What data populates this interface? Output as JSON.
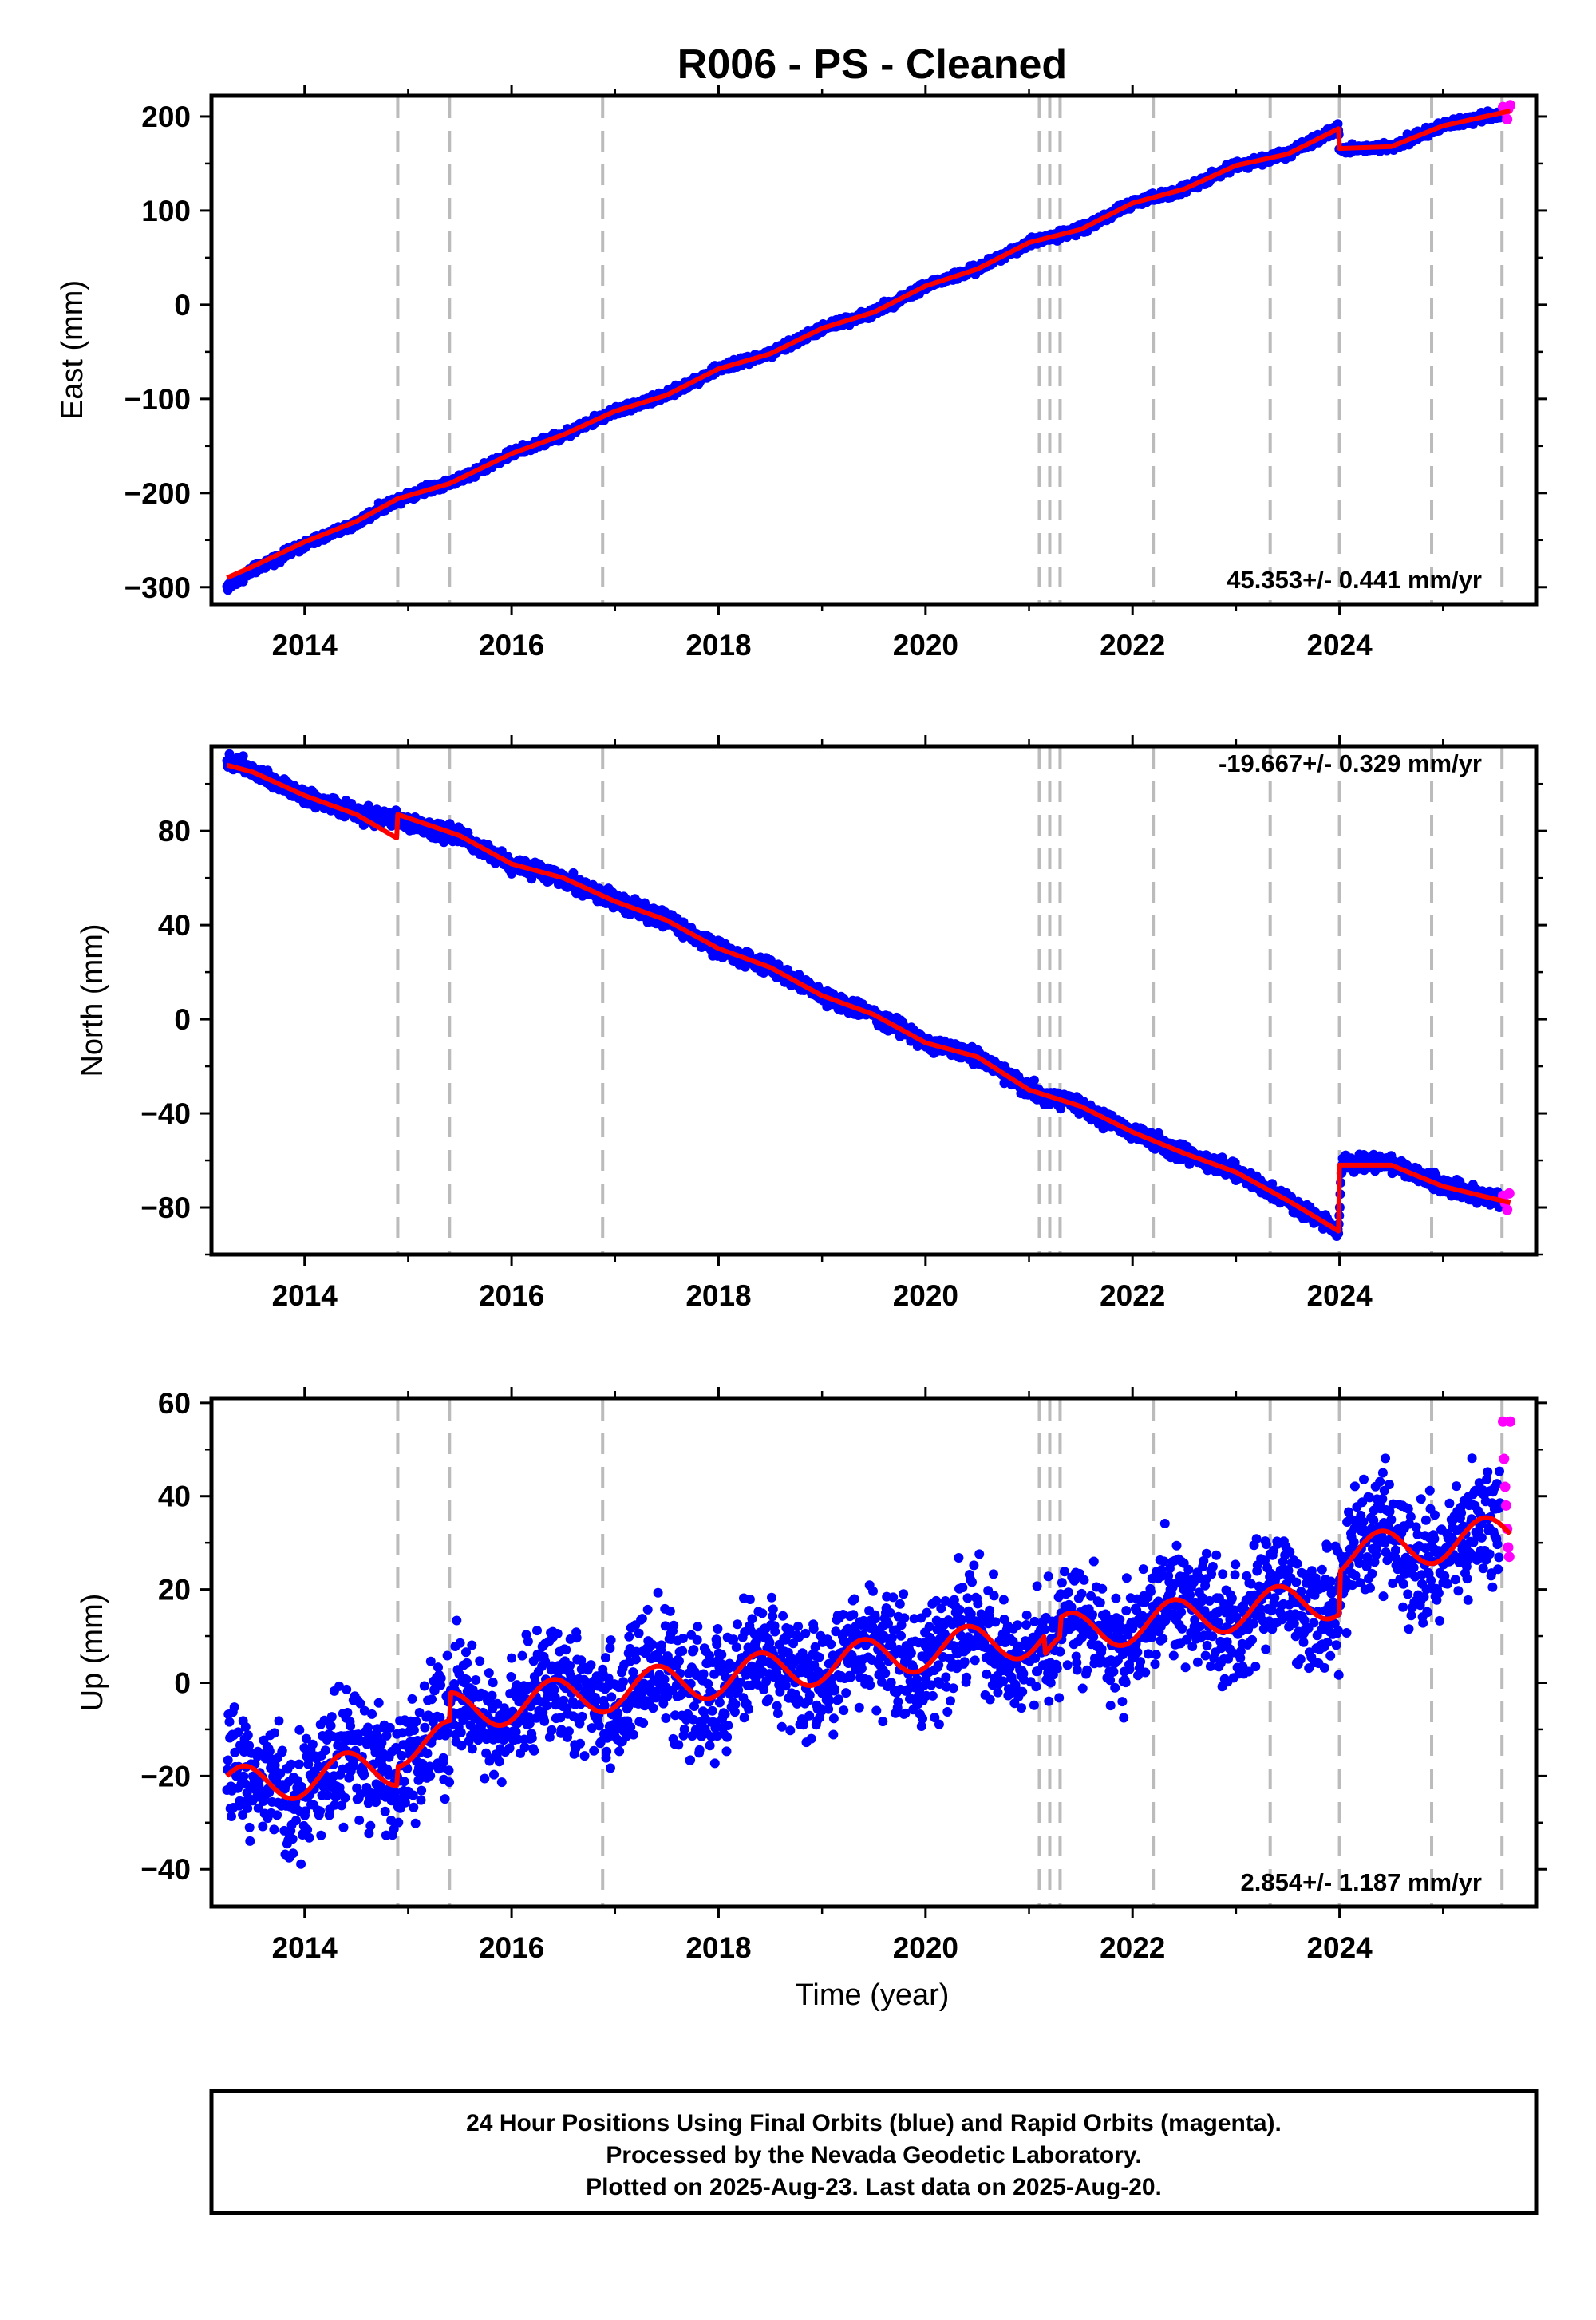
{
  "title": "R006  - PS - Cleaned",
  "xlabel": "Time (year)",
  "footer_lines": [
    "24 Hour Positions Using Final Orbits (blue) and Rapid Orbits (magenta).",
    "Processed by the Nevada Geodetic Laboratory.",
    "Plotted on 2025-Aug-23. Last data on 2025-Aug-20."
  ],
  "colors": {
    "final_orbits": "#0000ff",
    "rapid_orbits": "#ff00ff",
    "model_fit": "#ff0000",
    "steps": "#bbbbbb"
  },
  "chart_data": [
    {
      "type": "scatter",
      "panel": "east",
      "ylabel": "East (mm)",
      "rate_label": "45.353+/- 0.441 mm/yr",
      "rate_position": "bottom-right",
      "xlim": [
        2013.1,
        2025.9
      ],
      "ylim": [
        -318,
        222
      ],
      "xticks": [
        2014,
        2016,
        2018,
        2020,
        2022,
        2024
      ],
      "yticks": [
        -300,
        -200,
        -100,
        0,
        100,
        200
      ],
      "ytick_labels": [
        "−300",
        "−200",
        "−100",
        "0",
        "100",
        "200"
      ],
      "step_epochs": [
        2014.9,
        2015.4,
        2016.88,
        2021.1,
        2021.2,
        2021.3,
        2022.2,
        2023.33,
        2024.0,
        2024.89,
        2025.57
      ],
      "series": [
        {
          "name": "Final Orbits",
          "x": [
            2013.25,
            2013.5,
            2014.0,
            2014.5,
            2014.75,
            2015.0,
            2015.5,
            2016.0,
            2016.5,
            2017.0,
            2017.5,
            2018.0,
            2018.5,
            2019.0,
            2019.5,
            2020.0,
            2020.5,
            2021.0,
            2021.5,
            2022.0,
            2022.5,
            2023.0,
            2023.5,
            2023.99,
            2024.0,
            2024.5,
            2025.0,
            2025.55
          ],
          "y": [
            -300,
            -282,
            -255,
            -232,
            -215,
            -202,
            -185,
            -158,
            -138,
            -113,
            -96,
            -68,
            -52,
            -25,
            -8,
            20,
            38,
            66,
            80,
            108,
            123,
            148,
            160,
            187,
            165,
            168,
            190,
            203
          ]
        },
        {
          "name": "Rapid Orbits",
          "x": [
            2025.58,
            2025.6,
            2025.62,
            2025.63,
            2025.65
          ],
          "y": [
            210,
            205,
            197,
            208,
            212
          ]
        },
        {
          "name": "Model",
          "x": [
            2013.25,
            2013.5,
            2014.0,
            2014.5,
            2014.9,
            2015.4,
            2016.0,
            2016.5,
            2017.0,
            2017.5,
            2018.0,
            2018.5,
            2019.0,
            2019.5,
            2020.0,
            2020.5,
            2021.0,
            2021.5,
            2022.0,
            2022.5,
            2023.0,
            2023.5,
            2023.99,
            2024.0,
            2024.5,
            2025.0,
            2025.65
          ],
          "y": [
            -290,
            -278,
            -252,
            -230,
            -206,
            -190,
            -158,
            -138,
            -113,
            -96,
            -68,
            -52,
            -25,
            -8,
            20,
            38,
            66,
            80,
            108,
            123,
            148,
            160,
            187,
            166,
            168,
            190,
            206
          ]
        }
      ]
    },
    {
      "type": "scatter",
      "panel": "north",
      "ylabel": "North (mm)",
      "rate_label": "-19.667+/- 0.329 mm/yr",
      "rate_position": "top-right",
      "xlim": [
        2013.1,
        2025.9
      ],
      "ylim": [
        -100,
        116
      ],
      "xticks": [
        2014,
        2016,
        2018,
        2020,
        2022,
        2024
      ],
      "yticks": [
        -80,
        -40,
        0,
        40,
        80
      ],
      "ytick_labels": [
        "−80",
        "−40",
        "0",
        "40",
        "80"
      ],
      "step_epochs": [
        2014.9,
        2015.4,
        2016.88,
        2021.1,
        2021.2,
        2021.3,
        2022.2,
        2023.33,
        2024.0,
        2024.89,
        2025.57
      ],
      "series": [
        {
          "name": "Final Orbits",
          "x": [
            2013.25,
            2013.5,
            2014.0,
            2014.5,
            2014.89,
            2014.92,
            2015.5,
            2016.0,
            2016.5,
            2017.0,
            2017.5,
            2018.0,
            2018.5,
            2019.0,
            2019.5,
            2020.0,
            2020.5,
            2021.0,
            2021.5,
            2022.0,
            2022.5,
            2023.0,
            2023.5,
            2023.99,
            2024.02,
            2024.5,
            2025.0,
            2025.55
          ],
          "y": [
            110,
            106,
            95,
            87,
            85,
            84,
            78,
            66,
            60,
            50,
            42,
            30,
            22,
            10,
            2,
            -10,
            -16,
            -30,
            -37,
            -48,
            -57,
            -65,
            -77,
            -90,
            -61,
            -61,
            -71,
            -77
          ]
        },
        {
          "name": "Rapid Orbits",
          "x": [
            2025.58,
            2025.6,
            2025.62,
            2025.64
          ],
          "y": [
            -75,
            -78,
            -81,
            -74
          ]
        },
        {
          "name": "Model",
          "x": [
            2013.25,
            2013.5,
            2014.0,
            2014.5,
            2014.89,
            2014.9,
            2015.5,
            2016.0,
            2016.5,
            2017.0,
            2017.5,
            2018.0,
            2018.5,
            2019.0,
            2019.5,
            2020.0,
            2020.5,
            2021.0,
            2021.5,
            2022.0,
            2022.5,
            2023.0,
            2023.5,
            2023.99,
            2024.0,
            2024.5,
            2025.0,
            2025.65
          ],
          "y": [
            108,
            105,
            95,
            87,
            77,
            87,
            78,
            66,
            60,
            50,
            42,
            30,
            22,
            10,
            2,
            -10,
            -16,
            -30,
            -37,
            -48,
            -57,
            -65,
            -77,
            -90,
            -62,
            -62,
            -71,
            -78
          ]
        }
      ]
    },
    {
      "type": "scatter",
      "panel": "up",
      "ylabel": "Up (mm)",
      "rate_label": "2.854+/- 1.187 mm/yr",
      "rate_position": "bottom-right",
      "xlim": [
        2013.1,
        2025.9
      ],
      "ylim": [
        -48,
        61
      ],
      "xticks": [
        2014,
        2016,
        2018,
        2020,
        2022,
        2024
      ],
      "yticks": [
        -40,
        -20,
        0,
        20,
        40,
        60
      ],
      "ytick_labels": [
        "−40",
        "−20",
        "0",
        "20",
        "40",
        "60"
      ],
      "step_epochs": [
        2014.9,
        2015.4,
        2016.88,
        2021.1,
        2021.2,
        2021.3,
        2022.2,
        2023.33,
        2024.0,
        2024.89,
        2025.57
      ],
      "series": [
        {
          "name": "Final Orbits",
          "x": [
            2013.25,
            2013.5,
            2014.0,
            2014.5,
            2015.0,
            2015.5,
            2016.0,
            2016.5,
            2017.0,
            2017.5,
            2018.0,
            2018.5,
            2019.0,
            2019.5,
            2020.0,
            2020.5,
            2021.0,
            2021.5,
            2022.0,
            2022.5,
            2023.0,
            2023.5,
            2024.0,
            2024.5,
            2025.0,
            2025.55
          ],
          "y": [
            -25,
            -19,
            -22,
            -17,
            -19,
            -8,
            -9,
            -7,
            -6,
            -5,
            -4,
            -3,
            -2,
            1,
            1,
            3,
            4,
            5,
            5,
            6,
            6,
            8,
            9,
            20,
            22,
            27
          ],
          "spread": 6
        },
        {
          "name": "Rapid Orbits",
          "x": [
            2025.58,
            2025.59,
            2025.6,
            2025.61,
            2025.62,
            2025.63,
            2025.64,
            2025.65
          ],
          "y": [
            56,
            48,
            42,
            38,
            33,
            29,
            27,
            56
          ]
        },
        {
          "name": "Model",
          "trend": [
            -22.5,
            2.854,
            2013.25
          ],
          "annual_amplitude": 4.2,
          "steps": [
            [
              2014.9,
              4.0
            ],
            [
              2015.4,
              6.0
            ],
            [
              2021.15,
              -4.0
            ],
            [
              2021.3,
              4.0
            ],
            [
              2024.0,
              9.0
            ]
          ],
          "x_range": [
            2013.25,
            2025.65
          ]
        }
      ]
    }
  ]
}
